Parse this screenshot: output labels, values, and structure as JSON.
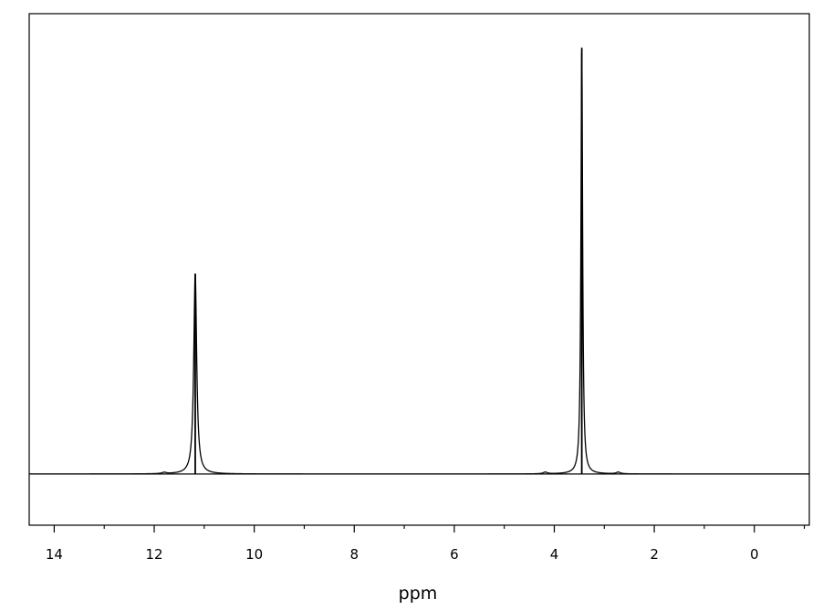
{
  "chart_data": {
    "type": "line",
    "title": "",
    "xlabel": "ppm",
    "ylabel": "",
    "x_reversed": true,
    "xlim": [
      14.5,
      -1.1
    ],
    "ylim": [
      -0.12,
      1.08
    ],
    "grid": false,
    "legend": "none",
    "x_ticks": [
      14,
      12,
      10,
      8,
      6,
      4,
      2,
      0
    ],
    "x_minor_ticks": [
      13,
      11,
      9,
      7,
      5,
      3,
      1,
      -1
    ],
    "baseline": 0,
    "line_color": "#000000",
    "series": [
      {
        "peaks": [
          {
            "ppm": 11.18,
            "intensity": 0.47,
            "width": 0.035
          },
          {
            "ppm": 3.45,
            "intensity": 1.0,
            "width": 0.02
          }
        ],
        "noise_features": [
          {
            "ppm": 11.8,
            "intensity": 0.003
          },
          {
            "ppm": 4.18,
            "intensity": 0.004
          },
          {
            "ppm": 2.72,
            "intensity": 0.004
          }
        ]
      }
    ]
  }
}
